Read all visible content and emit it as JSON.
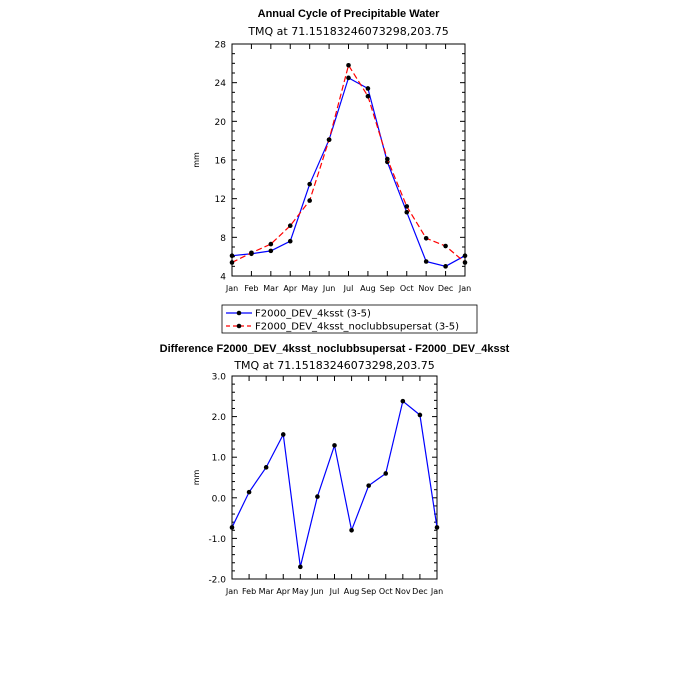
{
  "chart_data": [
    {
      "type": "line",
      "title": "Annual Cycle of Precipitable Water",
      "subtitle": "TMQ at 71.15183246073298,203.75",
      "xlabel": "",
      "ylabel": "mm",
      "categories": [
        "Jan",
        "Feb",
        "Mar",
        "Apr",
        "May",
        "Jun",
        "Jul",
        "Aug",
        "Sep",
        "Oct",
        "Nov",
        "Dec",
        "Jan"
      ],
      "ylim": [
        4,
        28
      ],
      "yticks": [
        "4",
        "8",
        "12",
        "16",
        "20",
        "24",
        "28"
      ],
      "series": [
        {
          "name": "F2000_DEV_4ksst (3-5)",
          "color": "#0000ff",
          "dash": "solid",
          "values": [
            6.1,
            6.3,
            6.6,
            7.6,
            13.5,
            18.1,
            24.5,
            23.4,
            15.8,
            10.6,
            5.5,
            5.0,
            6.1
          ]
        },
        {
          "name": "F2000_DEV_4ksst_noclubbsupersat (3-5)",
          "color": "#ff0000",
          "dash": "dashed",
          "values": [
            5.4,
            6.4,
            7.3,
            9.2,
            11.8,
            18.1,
            25.8,
            22.6,
            16.1,
            11.2,
            7.9,
            7.1,
            5.4
          ]
        }
      ],
      "legend": "bottom"
    },
    {
      "type": "line",
      "title": "Difference F2000_DEV_4ksst_noclubbsupersat - F2000_DEV_4ksst",
      "subtitle": "TMQ at 71.15183246073298,203.75",
      "xlabel": "",
      "ylabel": "mm",
      "categories": [
        "Jan",
        "Feb",
        "Mar",
        "Apr",
        "May",
        "Jun",
        "Jul",
        "Aug",
        "Sep",
        "Oct",
        "Nov",
        "Dec",
        "Jan"
      ],
      "ylim": [
        -2.0,
        3.0
      ],
      "yticks": [
        "-2.0",
        "-1.0",
        "0.0",
        "1.0",
        "2.0",
        "3.0"
      ],
      "series": [
        {
          "color": "#0000ff",
          "dash": "solid",
          "values": [
            -0.73,
            0.14,
            0.75,
            1.56,
            -1.7,
            0.03,
            1.29,
            -0.8,
            0.3,
            0.6,
            2.38,
            2.04,
            -0.73
          ]
        }
      ]
    }
  ]
}
